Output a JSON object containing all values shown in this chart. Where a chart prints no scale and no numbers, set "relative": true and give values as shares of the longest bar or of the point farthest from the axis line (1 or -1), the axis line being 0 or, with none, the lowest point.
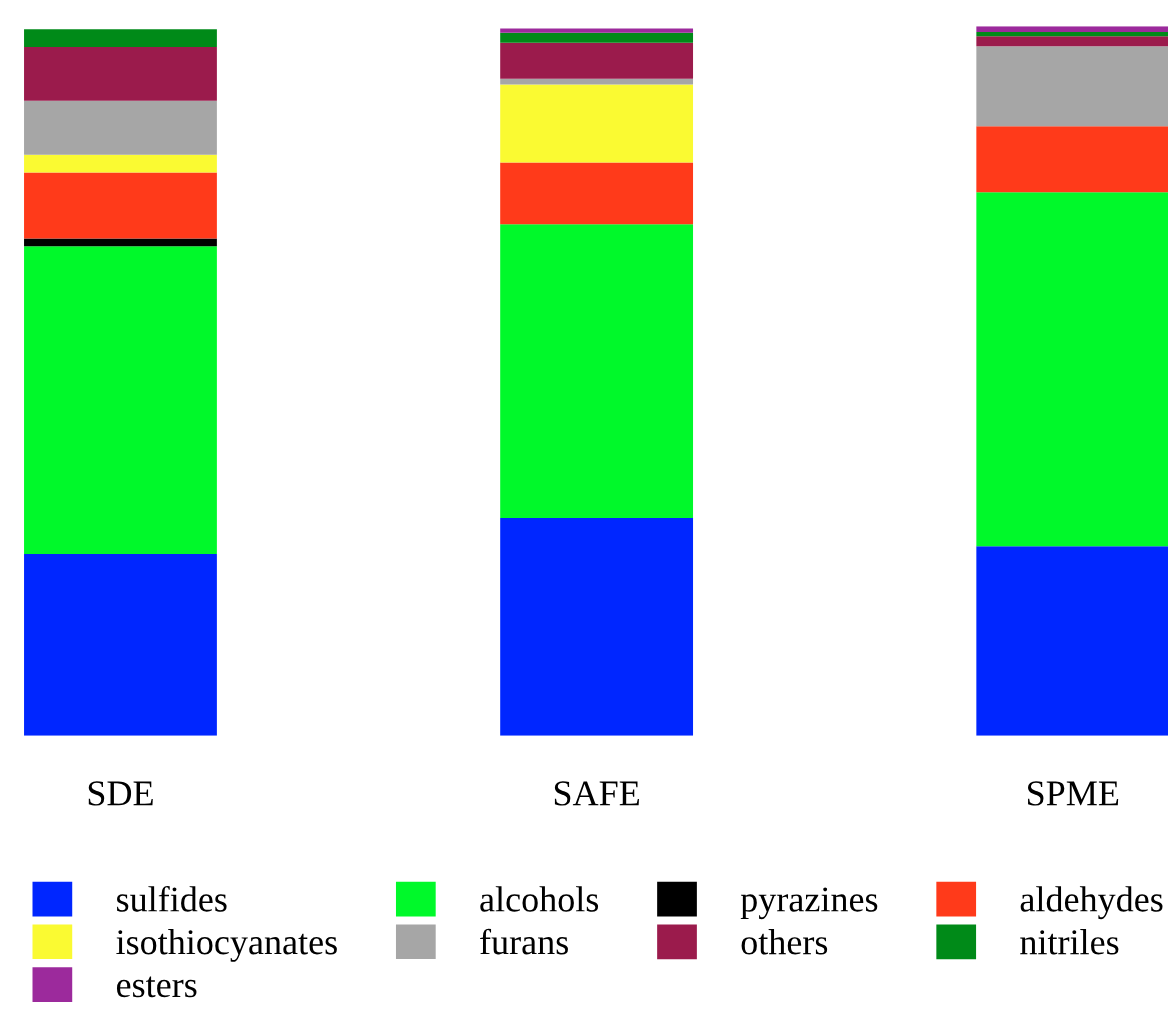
{
  "chart_data": {
    "type": "bar",
    "stacked": true,
    "relative": true,
    "grid": false,
    "legend": "bottom",
    "categories": [
      "SDE",
      "SAFE",
      "SPME"
    ],
    "series": [
      {
        "name": "sulfides",
        "color": "#0026ff",
        "values": [
          0.256,
          0.307,
          0.267
        ]
      },
      {
        "name": "alcohols",
        "color": "#00f92a",
        "values": [
          0.434,
          0.414,
          0.499
        ]
      },
      {
        "name": "pyrazines",
        "color": "#000000",
        "values": [
          0.011,
          0,
          0
        ]
      },
      {
        "name": "aldehydes",
        "color": "#ff3a1a",
        "values": [
          0.093,
          0.087,
          0.093
        ]
      },
      {
        "name": "isothiocyanates",
        "color": "#fafa32",
        "values": [
          0.025,
          0.11,
          0
        ]
      },
      {
        "name": "furans",
        "color": "#a6a6a6",
        "values": [
          0.076,
          0.008,
          0.113
        ]
      },
      {
        "name": "others",
        "color": "#9b1b4c",
        "values": [
          0.076,
          0.051,
          0.014
        ]
      },
      {
        "name": "nitriles",
        "color": "#008a18",
        "values": [
          0.025,
          0.014,
          0.006
        ]
      },
      {
        "name": "esters",
        "color": "#9c2a9c",
        "values": [
          0,
          0.006,
          0.008
        ]
      }
    ]
  }
}
